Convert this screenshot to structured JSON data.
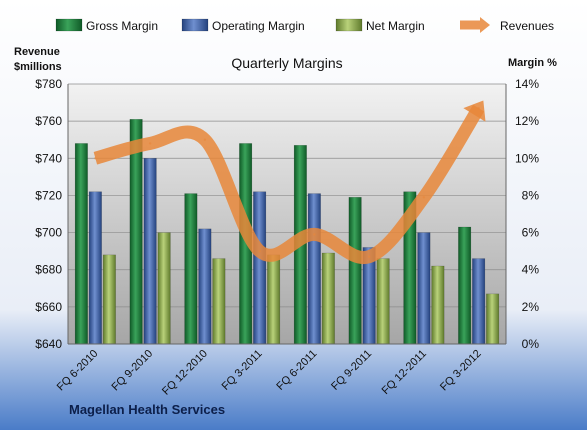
{
  "chart_data": {
    "type": "bar",
    "title": "Quarterly Margins",
    "company": "Magellan Health Services",
    "left_axis_label": [
      "Revenue",
      "$millions"
    ],
    "right_axis_label": "Margin %",
    "categories": [
      "FQ 6-2010",
      "FQ 9-2010",
      "FQ 12-2010",
      "FQ 3-2011",
      "FQ 6-2011",
      "FQ 9-2011",
      "FQ 12-2011",
      "FQ 3-2012"
    ],
    "left_axis": {
      "min": 640,
      "max": 780,
      "step": 20,
      "prefix": "$"
    },
    "right_axis": {
      "min": 0,
      "max": 14,
      "step": 2,
      "suffix": "%"
    },
    "series": [
      {
        "name": "Gross Margin",
        "kind": "bar",
        "axis": "right",
        "color": "#1e7a3c",
        "values": [
          10.8,
          12.1,
          8.1,
          10.8,
          10.7,
          7.9,
          8.2,
          6.3
        ]
      },
      {
        "name": "Operating Margin",
        "kind": "bar",
        "axis": "right",
        "color": "#3c5fa8",
        "values": [
          8.2,
          10.0,
          6.2,
          8.2,
          8.1,
          5.2,
          6.0,
          4.6
        ]
      },
      {
        "name": "Net Margin",
        "kind": "bar",
        "axis": "right",
        "color": "#8fad4a",
        "values": [
          4.8,
          6.0,
          4.6,
          4.8,
          4.9,
          4.6,
          4.2,
          2.7
        ]
      },
      {
        "name": "Revenues",
        "kind": "line",
        "axis": "left",
        "color": "#e8873a",
        "values": [
          740,
          748,
          750,
          690,
          699,
          687,
          719,
          767
        ]
      }
    ],
    "grid": true,
    "legend": "top"
  }
}
